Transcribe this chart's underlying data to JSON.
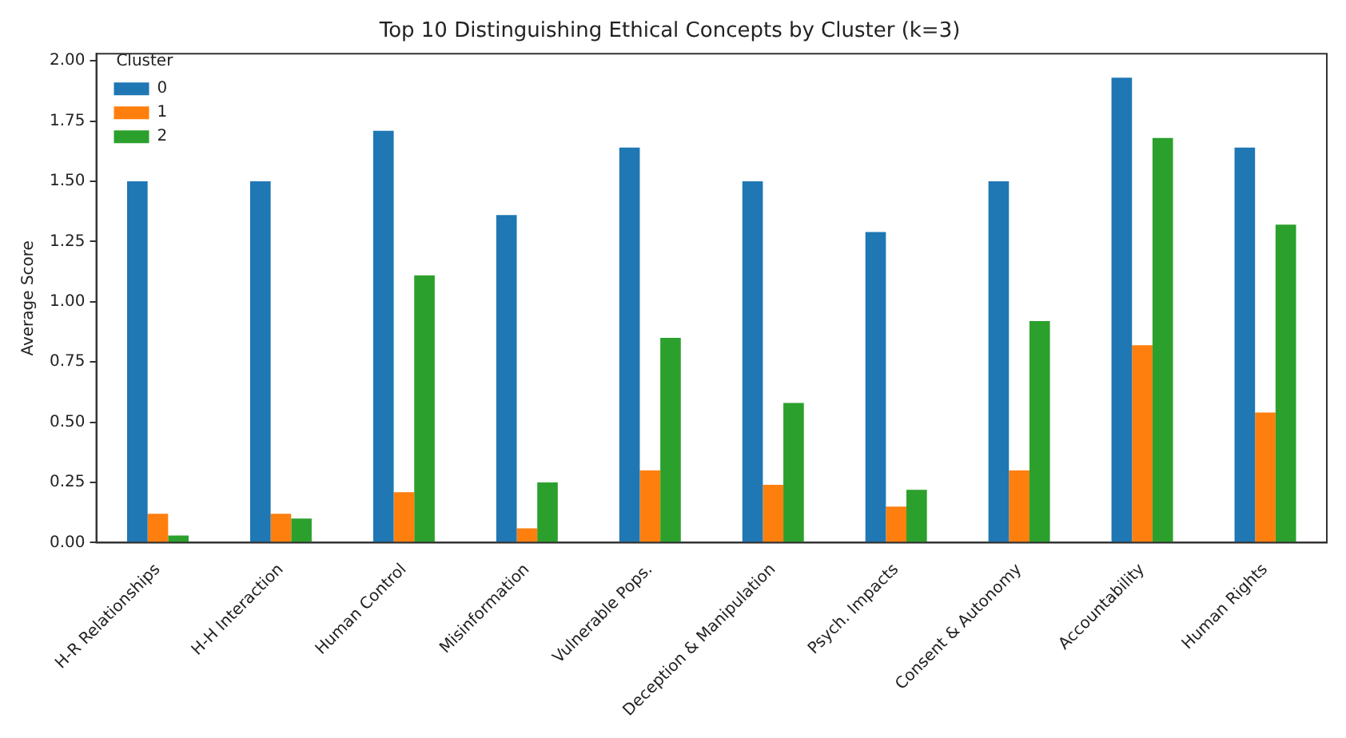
{
  "chart_data": {
    "type": "bar",
    "title": "Top 10 Distinguishing Ethical Concepts by Cluster (k=3)",
    "ylabel": "Average Score",
    "legend_title": "Cluster",
    "categories": [
      "H-R Relationships",
      "H-H Interaction",
      "Human Control",
      "Misinformation",
      "Vulnerable Pops.",
      "Deception & Manipulation",
      "Psych. Impacts",
      "Consent & Autonomy",
      "Accountability",
      "Human Rights"
    ],
    "series": [
      {
        "name": "0",
        "color": "#1f77b4",
        "values": [
          1.5,
          1.5,
          1.71,
          1.36,
          1.64,
          1.5,
          1.29,
          1.5,
          1.93,
          1.64
        ]
      },
      {
        "name": "1",
        "color": "#ff7f0e",
        "values": [
          0.12,
          0.12,
          0.21,
          0.06,
          0.3,
          0.24,
          0.15,
          0.3,
          0.82,
          0.54
        ]
      },
      {
        "name": "2",
        "color": "#2ca02c",
        "values": [
          0.03,
          0.1,
          1.11,
          0.25,
          0.85,
          0.58,
          0.22,
          0.92,
          1.68,
          1.32
        ]
      }
    ],
    "ylim": [
      0,
      2.03
    ],
    "yticks": [
      {
        "value": 0,
        "label": "0.00"
      },
      {
        "value": 0.25,
        "label": "0.25"
      },
      {
        "value": 0.5,
        "label": "0.50"
      },
      {
        "value": 0.75,
        "label": "0.75"
      },
      {
        "value": 1,
        "label": "1.00"
      },
      {
        "value": 1.25,
        "label": "1.25"
      },
      {
        "value": 1.5,
        "label": "1.50"
      },
      {
        "value": 1.75,
        "label": "1.75"
      },
      {
        "value": 2,
        "label": "2.00"
      }
    ],
    "grid": false,
    "legend": "top left"
  }
}
